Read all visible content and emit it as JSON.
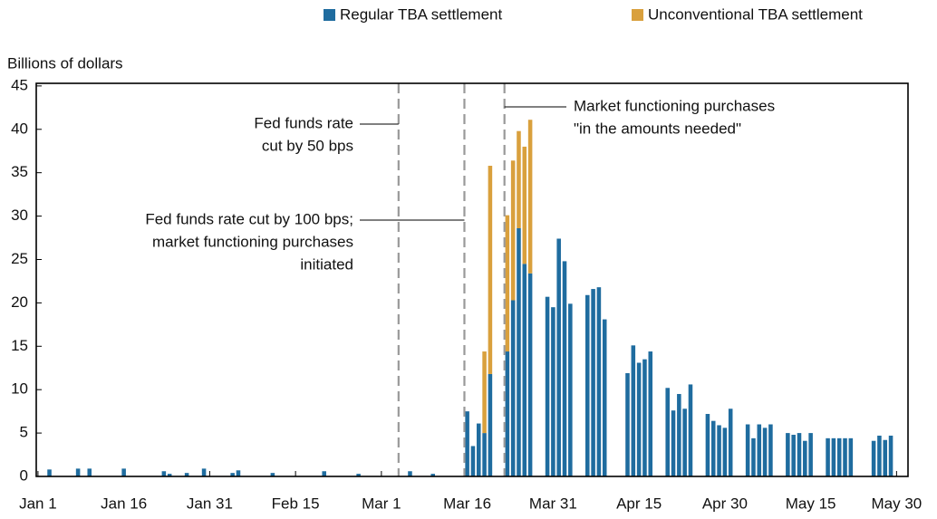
{
  "chart_data": {
    "type": "stacked_bar",
    "y_label": "Billions of dollars",
    "x": [
      2,
      7,
      9,
      15,
      22,
      23,
      26,
      29,
      34,
      35,
      41,
      50,
      56,
      65,
      69,
      75,
      76,
      77,
      78,
      79,
      82,
      83,
      84,
      85,
      86,
      89,
      90,
      91,
      92,
      93,
      96,
      97,
      98,
      99,
      103,
      104,
      105,
      106,
      107,
      110,
      111,
      112,
      113,
      114,
      117,
      118,
      119,
      120,
      121,
      124,
      125,
      126,
      127,
      128,
      131,
      132,
      133,
      134,
      135,
      138,
      139,
      140,
      141,
      142,
      146,
      147,
      148,
      149
    ],
    "series": [
      {
        "name": "Regular TBA settlement",
        "color": "#1f6c9f",
        "values": [
          0.8,
          0.9,
          0.9,
          0.9,
          0.6,
          0.3,
          0.4,
          0.9,
          0.4,
          0.7,
          0.4,
          0.6,
          0.3,
          0.6,
          0.3,
          7.5,
          3.5,
          6.1,
          5,
          11.8,
          14.4,
          20.3,
          28.6,
          24.5,
          23.4,
          20.7,
          19.5,
          27.4,
          24.8,
          19.9,
          20.9,
          21.6,
          21.8,
          18.1,
          11.9,
          15.1,
          13.1,
          13.5,
          14.4,
          10.2,
          7.6,
          9.5,
          7.8,
          10.6,
          7.2,
          6.4,
          5.9,
          5.6,
          7.8,
          6,
          4.4,
          6,
          5.6,
          6,
          5,
          4.8,
          5,
          4.1,
          5,
          4.4,
          4.4,
          4.4,
          4.4,
          4.4,
          4.1,
          4.7,
          4.2,
          4.7
        ]
      },
      {
        "name": "Unconventional TBA settlement",
        "color": "#d9a03d",
        "values": [
          0,
          0,
          0,
          0,
          0,
          0,
          0,
          0,
          0,
          0,
          0,
          0,
          0,
          0,
          0,
          0,
          0,
          0,
          9.4,
          24,
          15.7,
          16.1,
          11.2,
          13.5,
          17.7,
          0,
          0,
          0,
          0,
          0,
          0,
          0,
          0,
          0,
          0,
          0,
          0,
          0,
          0,
          0,
          0,
          0,
          0,
          0,
          0,
          0,
          0,
          0,
          0,
          0,
          0,
          0,
          0,
          0,
          0,
          0,
          0,
          0,
          0,
          0,
          0,
          0,
          0,
          0,
          0,
          0,
          0,
          0
        ]
      }
    ],
    "xlim": [
      -0.3,
      152
    ],
    "xticks": [
      {
        "value": 0,
        "label": "Jan 1"
      },
      {
        "value": 15,
        "label": "Jan 16"
      },
      {
        "value": 30,
        "label": "Jan 31"
      },
      {
        "value": 45,
        "label": "Feb 15"
      },
      {
        "value": 60,
        "label": "Mar 1"
      },
      {
        "value": 75,
        "label": "Mar 16"
      },
      {
        "value": 90,
        "label": "Mar 31"
      },
      {
        "value": 105,
        "label": "Apr 15"
      },
      {
        "value": 120,
        "label": "Apr 30"
      },
      {
        "value": 135,
        "label": "May 15"
      },
      {
        "value": 150,
        "label": "May 30"
      }
    ],
    "ylim": [
      0,
      45.3
    ],
    "yticks": [
      0,
      5,
      10,
      15,
      20,
      25,
      30,
      35,
      40,
      45
    ],
    "annotations": [
      {
        "x": 63,
        "text": [
          "Fed funds rate",
          "cut by 50 bps"
        ]
      },
      {
        "x": 74.5,
        "text": [
          "Fed funds rate cut by 100 bps;",
          "market functioning purchases",
          "initiated"
        ]
      },
      {
        "x": 81.5,
        "text": [
          "Market functioning purchases",
          "\"in the amounts needed\""
        ]
      }
    ]
  }
}
